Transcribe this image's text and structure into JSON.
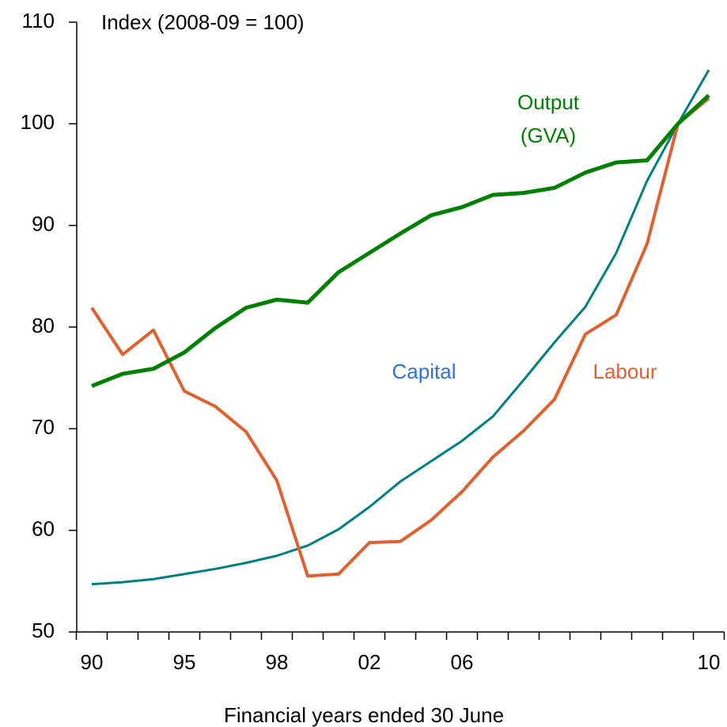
{
  "chart_data": {
    "type": "line",
    "title": "Index (2008-09 = 100)",
    "x_label": "Financial years ended 30 June",
    "categories": [
      "90",
      null,
      null,
      "95",
      null,
      null,
      "98",
      null,
      null,
      "02",
      null,
      null,
      "06",
      null,
      null,
      null,
      null,
      null,
      null,
      null,
      "10"
    ],
    "ylim": [
      50,
      110
    ],
    "yticks": [
      50,
      60,
      70,
      80,
      90,
      100,
      110
    ],
    "series": [
      {
        "name": "Output (GVA)",
        "color": "#008000",
        "label_color": "#008000",
        "values": [
          74.2,
          75.4,
          75.9,
          77.5,
          79.9,
          81.9,
          82.7,
          82.4,
          85.4,
          87.3,
          89.2,
          91.0,
          91.8,
          93.0,
          93.2,
          93.7,
          95.2,
          96.2,
          96.4,
          100,
          102.8
        ]
      },
      {
        "name": "Capital",
        "color": "#008080",
        "label_color": "#3070e0",
        "values": [
          54.7,
          54.9,
          55.2,
          55.7,
          56.2,
          56.8,
          57.5,
          58.5,
          60.1,
          62.3,
          64.8,
          66.8,
          68.8,
          71.2,
          74.8,
          78.5,
          82.0,
          87.3,
          94.4,
          100,
          105.3
        ]
      },
      {
        "name": "Labour",
        "color": "#e06030",
        "label_color": "#e06030",
        "values": [
          81.9,
          77.3,
          79.7,
          73.7,
          72.2,
          69.7,
          64.9,
          55.5,
          55.7,
          58.8,
          58.9,
          61.0,
          63.8,
          67.2,
          69.8,
          72.9,
          79.3,
          81.2,
          88.2,
          100,
          102.5
        ]
      }
    ]
  }
}
